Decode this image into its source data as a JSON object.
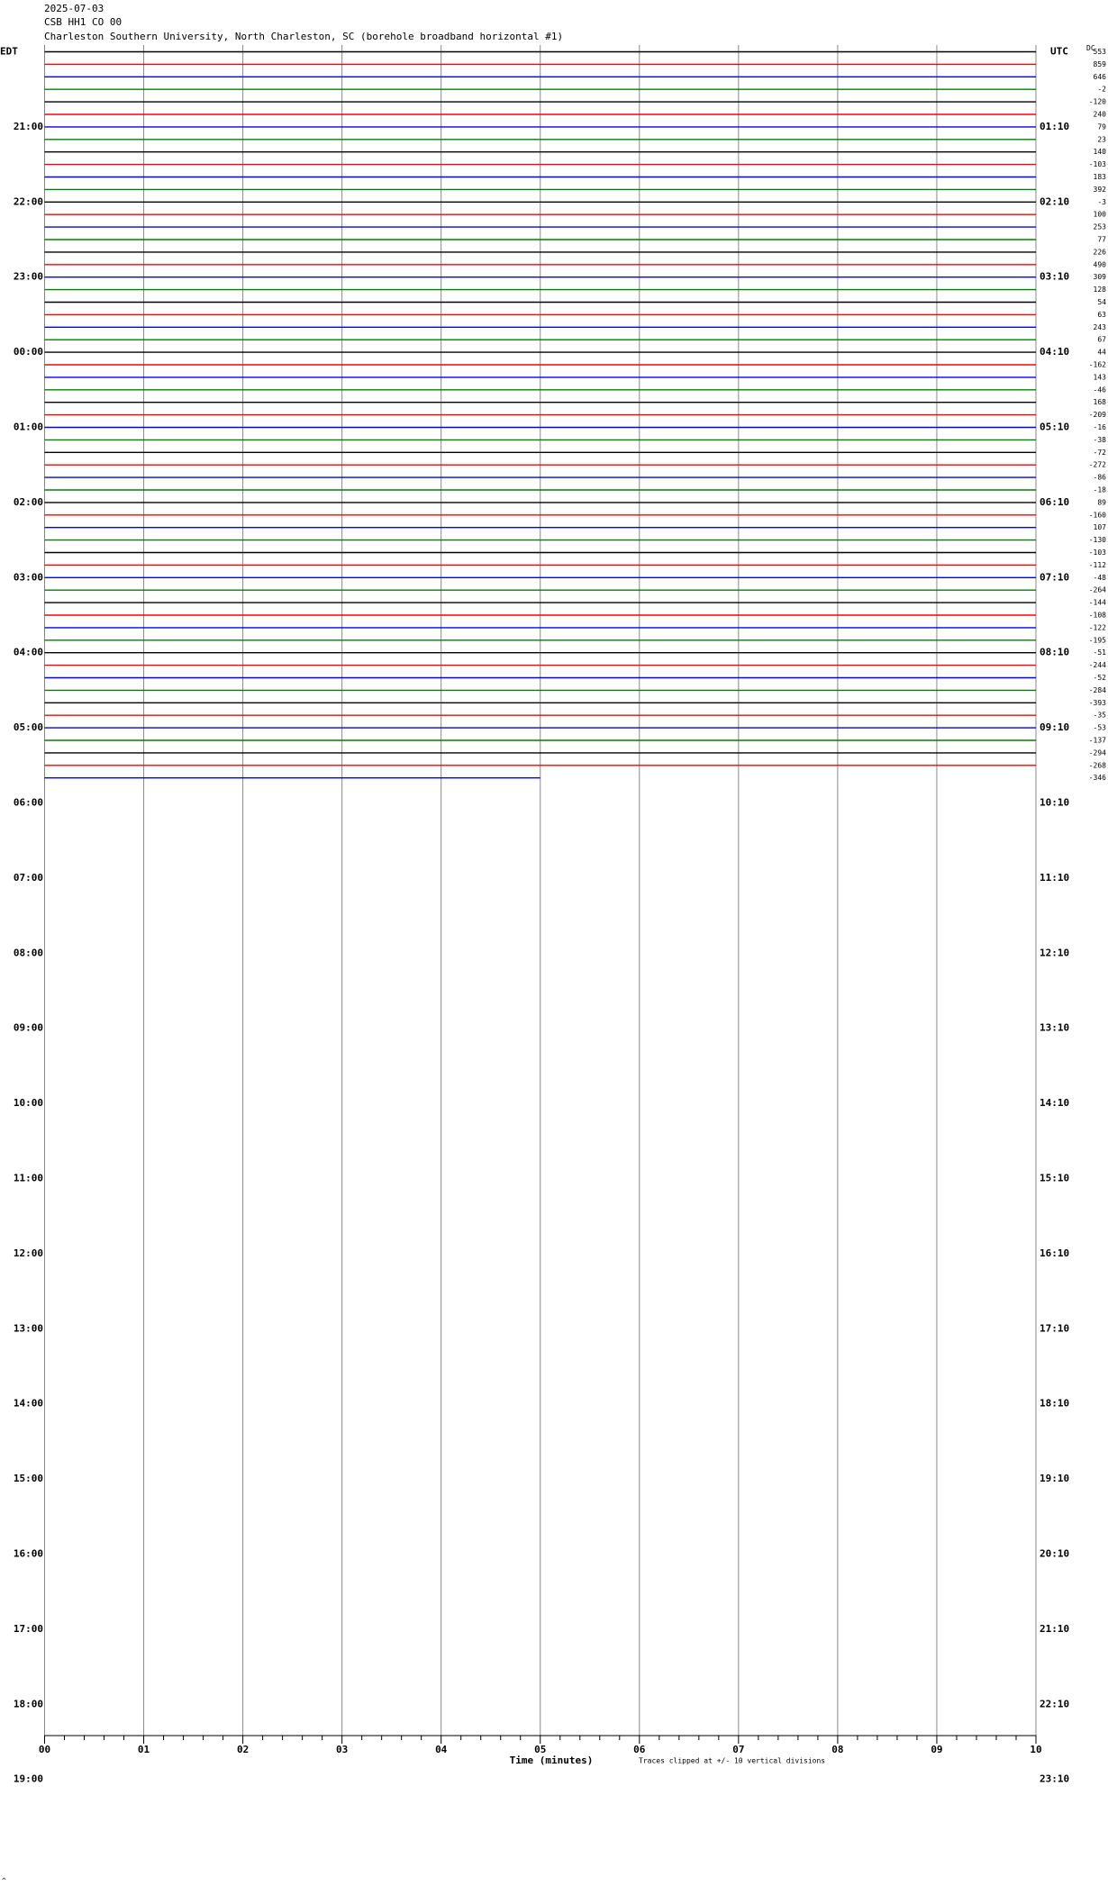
{
  "header": {
    "date": "2025-07-03",
    "station": "CSB HH1 CO 00",
    "location": "Charleston Southern University, North Charleston, SC (borehole broadband horizontal #1)"
  },
  "chart_data": {
    "type": "helicorder",
    "left_label": "EDT",
    "right_label": "UTC",
    "dc_label": "DC",
    "edt_labels": [
      "21:00",
      "22:00",
      "23:00",
      "00:00",
      "01:00",
      "02:00",
      "03:00",
      "04:00",
      "05:00",
      "06:00",
      "07:00",
      "08:00",
      "09:00",
      "10:00",
      "11:00",
      "12:00",
      "13:00",
      "14:00",
      "15:00",
      "16:00",
      "17:00",
      "18:00",
      "19:00"
    ],
    "utc_labels": [
      "01:10",
      "02:10",
      "03:10",
      "04:10",
      "05:10",
      "06:10",
      "07:10",
      "08:10",
      "09:10",
      "10:10",
      "11:10",
      "12:10",
      "13:10",
      "14:10",
      "15:10",
      "16:10",
      "17:10",
      "18:10",
      "19:10",
      "20:10",
      "21:10",
      "22:10",
      "23:10"
    ],
    "dc_values": [
      553,
      859,
      646,
      -2,
      -120,
      240,
      79,
      23,
      140,
      -103,
      183,
      392,
      -3,
      100,
      253,
      77,
      226,
      490,
      309,
      128,
      54,
      63,
      243,
      67,
      44,
      -162,
      143,
      -46,
      168,
      -209,
      -16,
      -38,
      -72,
      -272,
      -86,
      -18,
      89,
      -160,
      107,
      -130,
      -103,
      -112,
      -48,
      -264,
      -144,
      -108,
      -122,
      -195,
      -51,
      -244,
      -52,
      -284,
      -393,
      -35,
      -53,
      -137,
      -294,
      -268,
      -346
    ],
    "trace_colors": [
      "#000000",
      "#ff0000",
      "#0000ff",
      "#008000"
    ],
    "xlim": [
      0,
      10
    ],
    "xticks": [
      {
        "value": 0,
        "label": "00"
      },
      {
        "value": 1,
        "label": "01"
      },
      {
        "value": 2,
        "label": "02"
      },
      {
        "value": 3,
        "label": "03"
      },
      {
        "value": 4,
        "label": "04"
      },
      {
        "value": 5,
        "label": "05"
      },
      {
        "value": 6,
        "label": "06"
      },
      {
        "value": 7,
        "label": "07"
      },
      {
        "value": 8,
        "label": "08"
      },
      {
        "value": 9,
        "label": "09"
      },
      {
        "value": 10,
        "label": "10"
      }
    ],
    "xlabel": "Time (minutes)",
    "note": "Traces clipped at +/- 10 vertical divisions",
    "corner_mark": "^",
    "grid": true
  }
}
